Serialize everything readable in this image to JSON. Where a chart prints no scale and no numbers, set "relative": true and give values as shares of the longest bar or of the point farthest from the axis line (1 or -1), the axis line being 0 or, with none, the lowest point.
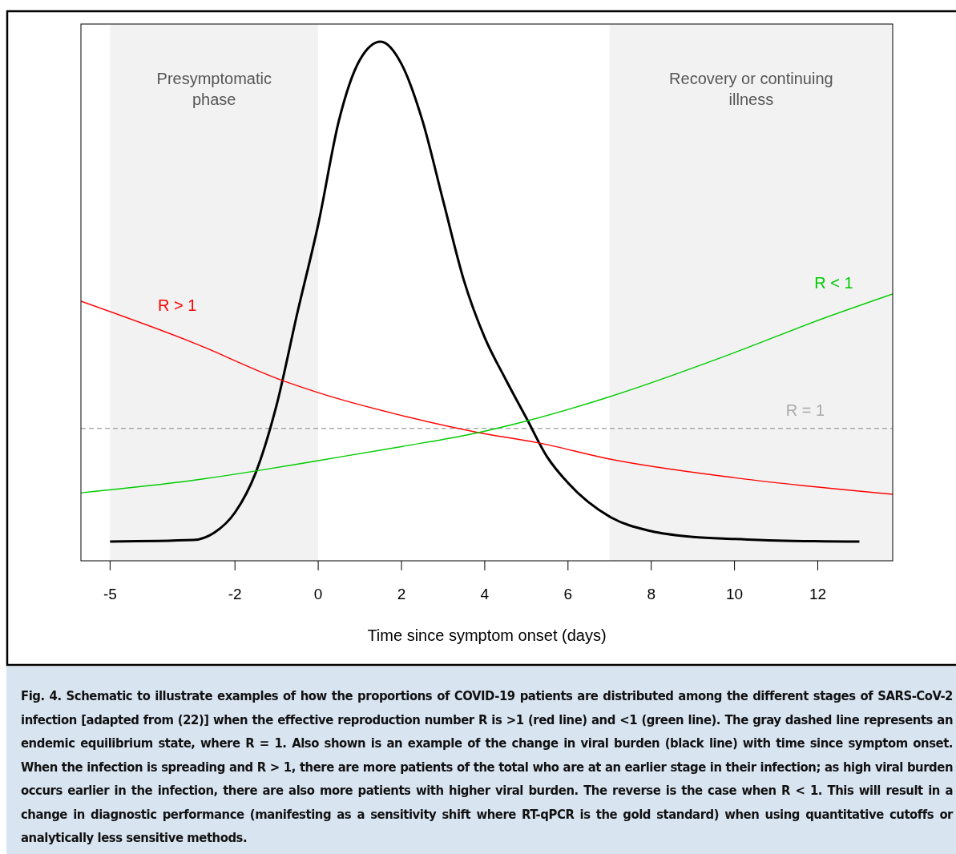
{
  "chart_data": {
    "type": "line",
    "relative": true,
    "xlabel": "Time since symptom onset (days)",
    "xlim": [
      -5.7,
      13.8
    ],
    "xticks": [
      -5,
      -2,
      0,
      2,
      4,
      6,
      8,
      10,
      12
    ],
    "grid": false,
    "line_style": "solid",
    "marker": "none",
    "series": [
      {
        "color": "#000000",
        "x": [
          -5,
          -3,
          -2.5,
          -2,
          -1.5,
          -1,
          -0.5,
          0,
          0.5,
          1,
          1.5,
          2,
          2.5,
          3,
          3.5,
          4,
          4.5,
          5,
          5.5,
          6,
          7,
          8,
          9,
          10,
          11,
          13
        ],
        "values": [
          0.037,
          0.04,
          0.054,
          0.093,
          0.17,
          0.3,
          0.478,
          0.648,
          0.849,
          0.965,
          1.0,
          0.957,
          0.849,
          0.694,
          0.54,
          0.43,
          0.35,
          0.275,
          0.2,
          0.15,
          0.085,
          0.057,
          0.046,
          0.042,
          0.039,
          0.037
        ]
      },
      {
        "name": "R > 1",
        "color": "#ff0000",
        "x": [
          -5.7,
          -3,
          -0.85,
          0,
          2,
          3.85,
          5.3,
          7,
          10,
          13.8
        ],
        "values": [
          0.5,
          0.42,
          0.347,
          0.324,
          0.28,
          0.247,
          0.227,
          0.196,
          0.16,
          0.128
        ]
      },
      {
        "name": "R < 1",
        "color": "#00cc00",
        "x": [
          -5.7,
          -3,
          -1.5,
          0,
          2,
          3.85,
          5.04,
          7,
          10,
          12,
          13.8
        ],
        "values": [
          0.131,
          0.155,
          0.173,
          0.193,
          0.22,
          0.247,
          0.27,
          0.316,
          0.401,
          0.463,
          0.514
        ]
      }
    ],
    "ref_lines": [
      {
        "axis": "y",
        "value": 0.255,
        "color": "#aaaaaa",
        "line_style": "dashed"
      }
    ],
    "bands": [
      {
        "axis": "x",
        "from": -5,
        "to": 0,
        "label": "Presymptomatic\nphase",
        "color": "#f2f2f2"
      },
      {
        "axis": "x",
        "from": 7,
        "to": 13.8,
        "label": "Recovery or continuing\nillness",
        "color": "#f2f2f2"
      }
    ],
    "annotations": [
      {
        "text": "R = 1",
        "x": 11.7,
        "y": 0.255
      },
      "Fig. 4. Schematic to illustrate examples of how the proportions of COVID-19 patients are distributed among the different stages of SARS-CoV-2 infection [adapted from (22)] when the effective reproduction number R is >1 (red line) and <1 (green line). The gray dashed line represents an endemic equilibrium state, where R = 1. Also shown is an example of the change in viral burden (black line) with time since symptom onset. When the infection is spreading and R > 1, there are more patients of the total who are at an earlier stage in their infection; as high viral burden occurs earlier in the infection, there are also more patients with higher viral burden. The reverse is the case when R < 1. This will result in a change in diagnostic performance (manifesting as a sensitivity shift where RT-qPCR is the gold standard) when using quantitative cutoffs or analytically less sensitive methods."
    ]
  }
}
